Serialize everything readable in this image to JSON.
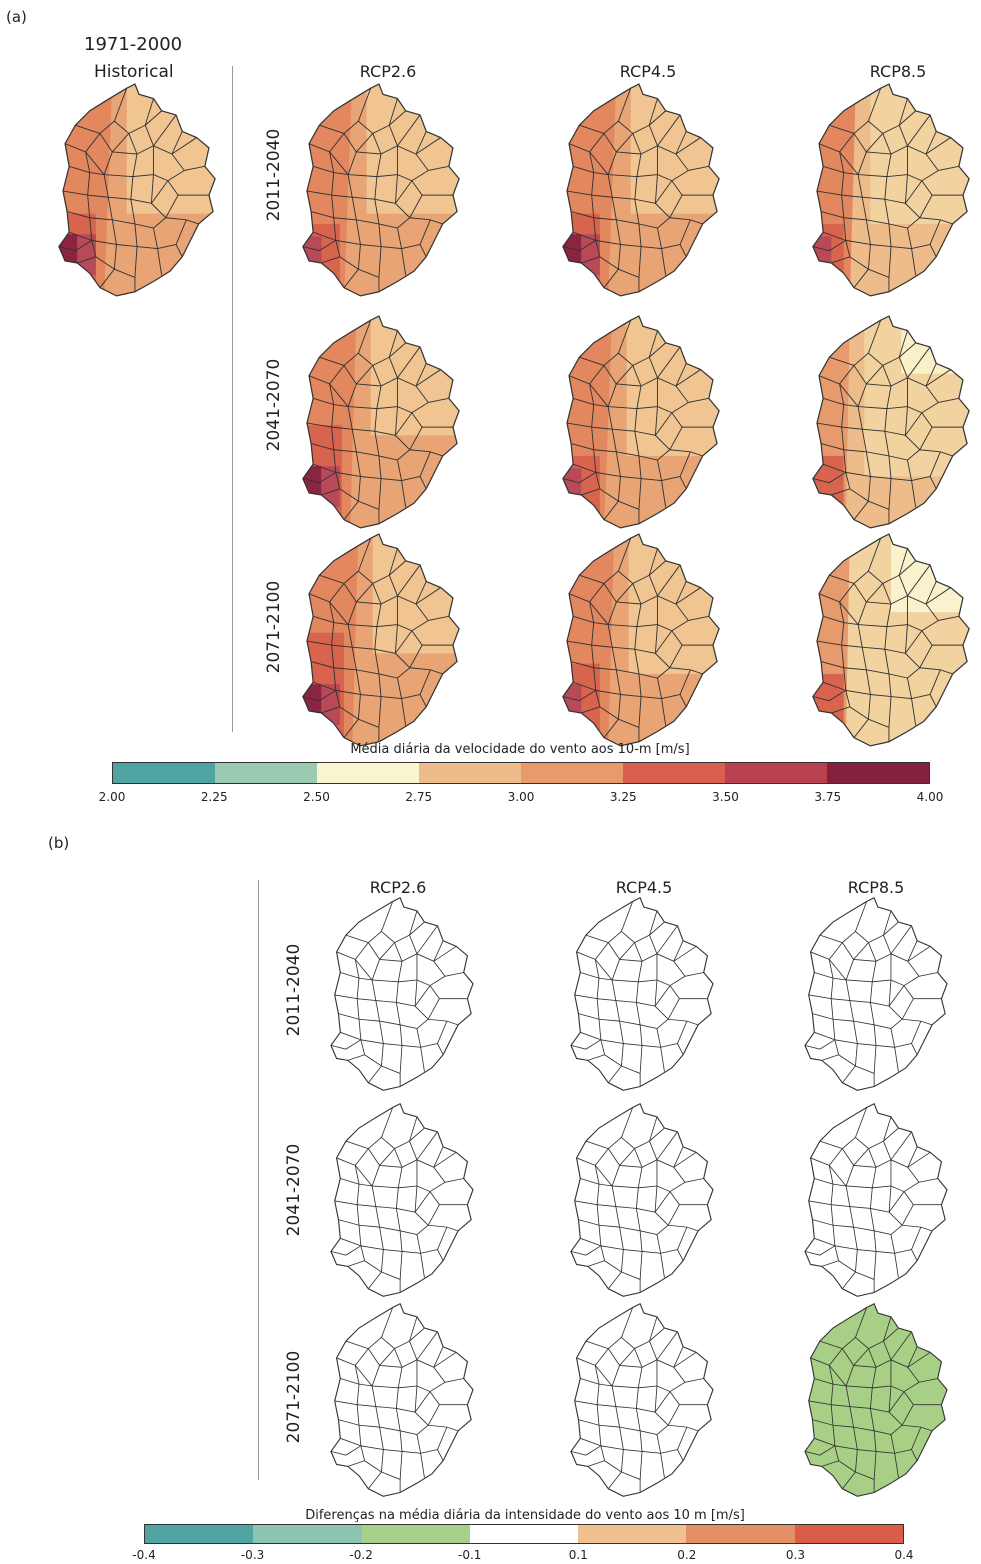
{
  "panel_a": {
    "letter": "(a)",
    "historical_period": "1971-2000",
    "historical_label": "Historical",
    "columns": [
      "RCP2.6",
      "RCP4.5",
      "RCP8.5"
    ],
    "rows": [
      "2011-2040",
      "2041-2070",
      "2071-2100"
    ],
    "colorbar": {
      "title": "Média diária da velocidade do vento aos 10-m [m/s]",
      "ticks": [
        "2.00",
        "2.25",
        "2.50",
        "2.75",
        "3.00",
        "3.25",
        "3.50",
        "3.75",
        "4.00"
      ],
      "colors": [
        "#4fa3a3",
        "#9ccbb3",
        "#f9f6cf",
        "#eebc8a",
        "#e79a6c",
        "#d9604f",
        "#b8404f",
        "#85203e"
      ]
    }
  },
  "panel_b": {
    "letter": "(b)",
    "columns": [
      "RCP2.6",
      "RCP4.5",
      "RCP8.5"
    ],
    "rows": [
      "2011-2040",
      "2041-2070",
      "2071-2100"
    ],
    "colorbar": {
      "title": "Diferenças na média diária da intensidade do vento aos 10 m [m/s]",
      "ticks": [
        "-0.4",
        "-0.3",
        "-0.2",
        "-0.1",
        "0.1",
        "0.2",
        "0.3",
        "0.4"
      ],
      "colors": [
        "#4fa3a3",
        "#8cc4b0",
        "#a7d08a",
        "#ffffff",
        "#f0c08e",
        "#e48f66",
        "#dc5c4a"
      ]
    }
  }
}
